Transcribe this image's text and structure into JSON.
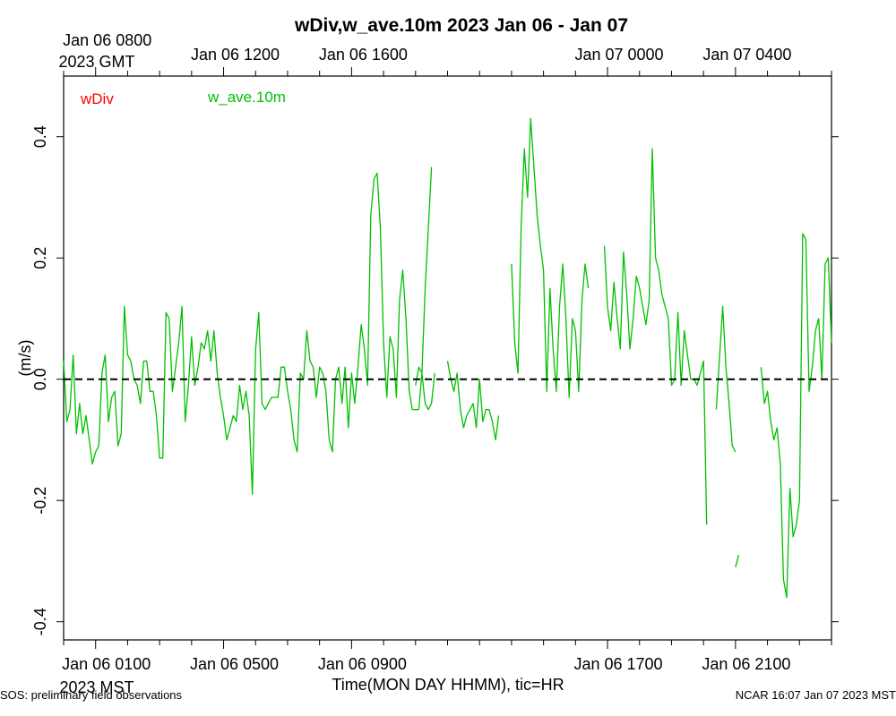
{
  "chart_data": {
    "type": "line",
    "title": "wDiv,w_ave.10m 2023 Jan 06 - Jan 07",
    "xlabel": "Time(MON DAY HHMM), tic=HR",
    "ylabel": "(m/s)",
    "ylim": [
      -0.43,
      0.5
    ],
    "xlim_hours": [
      0,
      24
    ],
    "yticks": [
      -0.4,
      -0.2,
      0.0,
      0.2,
      0.4
    ],
    "ytick_labels": [
      "-0.4",
      "-0.2",
      "0.0",
      "0.2",
      "0.4"
    ],
    "bottom_axis": {
      "tz_label": "2023 MST",
      "ticks": [
        {
          "hour": 1,
          "label": "Jan 06 0100"
        },
        {
          "hour": 5,
          "label": "Jan 06 0500"
        },
        {
          "hour": 9,
          "label": "Jan 06 0900"
        },
        {
          "hour": 17,
          "label": "Jan 06 1700"
        },
        {
          "hour": 21,
          "label": "Jan 06 2100"
        }
      ]
    },
    "top_axis": {
      "tz_label": "2023 GMT",
      "ticks": [
        {
          "hour": 1,
          "label": "Jan 06 0800"
        },
        {
          "hour": 5,
          "label": "Jan 06 1200"
        },
        {
          "hour": 9,
          "label": "Jan 06 1600"
        },
        {
          "hour": 17,
          "label": "Jan 07 0000"
        },
        {
          "hour": 21,
          "label": "Jan 07 0400"
        }
      ]
    },
    "zero_line": {
      "value": 0.0,
      "style": "dashed"
    },
    "series": [
      {
        "name": "wDiv",
        "color": "#ff0000",
        "points": []
      },
      {
        "name": "w_ave.10m",
        "color": "#00c000",
        "points": [
          [
            0.0,
            0.03
          ],
          [
            0.1,
            -0.07
          ],
          [
            0.2,
            -0.05
          ],
          [
            0.3,
            0.04
          ],
          [
            0.4,
            -0.09
          ],
          [
            0.5,
            -0.04
          ],
          [
            0.6,
            -0.09
          ],
          [
            0.7,
            -0.06
          ],
          [
            0.8,
            -0.1
          ],
          [
            0.9,
            -0.14
          ],
          [
            1.0,
            -0.12
          ],
          [
            1.1,
            -0.11
          ],
          [
            1.2,
            0.01
          ],
          [
            1.3,
            0.04
          ],
          [
            1.4,
            -0.07
          ],
          [
            1.5,
            -0.03
          ],
          [
            1.6,
            -0.02
          ],
          [
            1.7,
            -0.11
          ],
          [
            1.8,
            -0.09
          ],
          [
            1.9,
            0.12
          ],
          [
            2.0,
            0.04
          ],
          [
            2.1,
            0.03
          ],
          [
            2.2,
            0.0
          ],
          [
            2.3,
            -0.01
          ],
          [
            2.4,
            -0.04
          ],
          [
            2.5,
            0.03
          ],
          [
            2.6,
            0.03
          ],
          [
            2.7,
            -0.02
          ],
          [
            2.8,
            -0.02
          ],
          [
            2.9,
            -0.06
          ],
          [
            3.0,
            -0.13
          ],
          [
            3.1,
            -0.13
          ],
          [
            3.2,
            0.11
          ],
          [
            3.3,
            0.1
          ],
          [
            3.4,
            -0.02
          ],
          [
            3.5,
            0.02
          ],
          [
            3.6,
            0.06
          ],
          [
            3.7,
            0.12
          ],
          [
            3.8,
            -0.07
          ],
          [
            3.9,
            -0.01
          ],
          [
            4.0,
            0.07
          ],
          [
            4.1,
            -0.01
          ],
          [
            4.2,
            0.02
          ],
          [
            4.3,
            0.06
          ],
          [
            4.4,
            0.05
          ],
          [
            4.5,
            0.08
          ],
          [
            4.6,
            0.03
          ],
          [
            4.7,
            0.08
          ],
          [
            4.8,
            0.01
          ],
          [
            4.9,
            -0.03
          ],
          [
            5.0,
            -0.06
          ],
          [
            5.1,
            -0.1
          ],
          [
            5.2,
            -0.08
          ],
          [
            5.3,
            -0.06
          ],
          [
            5.4,
            -0.07
          ],
          [
            5.5,
            -0.01
          ],
          [
            5.6,
            -0.05
          ],
          [
            5.7,
            -0.02
          ],
          [
            5.8,
            -0.06
          ],
          [
            5.9,
            -0.19
          ],
          [
            6.0,
            0.05
          ],
          [
            6.1,
            0.11
          ],
          [
            6.2,
            -0.04
          ],
          [
            6.3,
            -0.05
          ],
          [
            6.4,
            -0.04
          ],
          [
            6.5,
            -0.03
          ],
          [
            6.6,
            -0.03
          ],
          [
            6.7,
            -0.03
          ],
          [
            6.8,
            0.02
          ],
          [
            6.9,
            0.02
          ],
          [
            7.0,
            -0.02
          ],
          [
            7.1,
            -0.05
          ],
          [
            7.2,
            -0.1
          ],
          [
            7.3,
            -0.12
          ],
          [
            7.4,
            0.01
          ],
          [
            7.5,
            0.0
          ],
          [
            7.6,
            0.08
          ],
          [
            7.7,
            0.03
          ],
          [
            7.8,
            0.02
          ],
          [
            7.9,
            -0.03
          ],
          [
            8.0,
            0.02
          ],
          [
            8.1,
            0.01
          ],
          [
            8.2,
            -0.02
          ],
          [
            8.3,
            -0.1
          ],
          [
            8.4,
            -0.12
          ],
          [
            8.5,
            0.0
          ],
          [
            8.6,
            0.02
          ],
          [
            8.7,
            -0.04
          ],
          [
            8.8,
            0.02
          ],
          [
            8.9,
            -0.08
          ],
          [
            9.0,
            0.01
          ],
          [
            9.1,
            -0.04
          ],
          [
            9.2,
            0.02
          ],
          [
            9.3,
            0.09
          ],
          [
            9.4,
            0.05
          ],
          [
            9.5,
            -0.01
          ],
          [
            9.6,
            0.27
          ],
          [
            9.7,
            0.33
          ],
          [
            9.8,
            0.34
          ],
          [
            9.9,
            0.25
          ],
          [
            10.0,
            0.06
          ],
          [
            10.1,
            -0.03
          ],
          [
            10.2,
            0.07
          ],
          [
            10.3,
            0.05
          ],
          [
            10.4,
            -0.03
          ],
          [
            10.5,
            0.13
          ],
          [
            10.6,
            0.18
          ],
          [
            10.7,
            0.1
          ],
          [
            10.8,
            -0.02
          ],
          [
            10.9,
            -0.05
          ],
          [
            11.0,
            -0.05
          ],
          [
            11.1,
            -0.05
          ],
          [
            11.2,
            0.01
          ],
          [
            11.3,
            0.15
          ],
          [
            11.4,
            0.25
          ],
          [
            11.5,
            0.35
          ]
        ]
      },
      {
        "name": "w_ave.10m",
        "color": "#00c000",
        "points": [
          [
            12.0,
            0.03
          ],
          [
            12.1,
            0.0
          ],
          [
            12.2,
            -0.02
          ],
          [
            12.3,
            0.01
          ],
          [
            12.4,
            -0.05
          ],
          [
            12.5,
            -0.08
          ],
          [
            12.6,
            -0.06
          ],
          [
            12.7,
            -0.05
          ],
          [
            12.8,
            -0.04
          ],
          [
            12.9,
            -0.08
          ],
          [
            13.0,
            0.0
          ],
          [
            13.1,
            -0.07
          ],
          [
            13.2,
            -0.05
          ],
          [
            13.3,
            -0.05
          ],
          [
            13.4,
            -0.07
          ],
          [
            13.5,
            -0.1
          ],
          [
            13.6,
            -0.06
          ]
        ]
      },
      {
        "name": "w_ave.10m",
        "color": "#00c000",
        "points": [
          [
            11.0,
            -0.01
          ],
          [
            11.1,
            0.02
          ],
          [
            11.2,
            0.01
          ],
          [
            11.3,
            -0.04
          ],
          [
            11.4,
            -0.05
          ],
          [
            11.5,
            -0.04
          ],
          [
            11.6,
            0.01
          ]
        ]
      },
      {
        "name": "w_ave.10m",
        "color": "#00c000",
        "points": [
          [
            14.0,
            0.19
          ],
          [
            14.1,
            0.06
          ],
          [
            14.2,
            0.01
          ],
          [
            14.3,
            0.25
          ],
          [
            14.4,
            0.38
          ],
          [
            14.5,
            0.3
          ],
          [
            14.6,
            0.43
          ],
          [
            14.7,
            0.35
          ],
          [
            14.8,
            0.27
          ],
          [
            14.9,
            0.22
          ],
          [
            15.0,
            0.18
          ],
          [
            15.1,
            -0.02
          ],
          [
            15.2,
            0.15
          ],
          [
            15.3,
            0.05
          ],
          [
            15.4,
            -0.02
          ],
          [
            15.5,
            0.12
          ],
          [
            15.6,
            0.19
          ],
          [
            15.7,
            0.1
          ],
          [
            15.8,
            -0.03
          ],
          [
            15.9,
            0.1
          ],
          [
            16.0,
            0.08
          ],
          [
            16.1,
            -0.02
          ],
          [
            16.2,
            0.13
          ],
          [
            16.3,
            0.19
          ],
          [
            16.4,
            0.15
          ]
        ]
      },
      {
        "name": "w_ave.10m",
        "color": "#00c000",
        "points": [
          [
            16.9,
            0.22
          ],
          [
            17.0,
            0.12
          ],
          [
            17.1,
            0.08
          ],
          [
            17.2,
            0.16
          ],
          [
            17.3,
            0.1
          ],
          [
            17.4,
            0.05
          ],
          [
            17.5,
            0.21
          ],
          [
            17.6,
            0.14
          ],
          [
            17.7,
            0.05
          ],
          [
            17.8,
            0.1
          ],
          [
            17.9,
            0.17
          ],
          [
            18.0,
            0.15
          ],
          [
            18.1,
            0.12
          ],
          [
            18.2,
            0.09
          ],
          [
            18.3,
            0.13
          ],
          [
            18.4,
            0.38
          ],
          [
            18.5,
            0.2
          ],
          [
            18.6,
            0.18
          ],
          [
            18.7,
            0.14
          ],
          [
            18.8,
            0.12
          ],
          [
            18.9,
            0.1
          ],
          [
            19.0,
            -0.01
          ],
          [
            19.1,
            0.0
          ],
          [
            19.2,
            0.11
          ],
          [
            19.3,
            -0.01
          ],
          [
            19.4,
            0.08
          ],
          [
            19.5,
            0.04
          ],
          [
            19.6,
            0.0
          ],
          [
            19.7,
            0.0
          ],
          [
            19.8,
            -0.01
          ],
          [
            19.9,
            0.01
          ],
          [
            20.0,
            0.03
          ],
          [
            20.1,
            -0.24
          ]
        ]
      },
      {
        "name": "w_ave.10m",
        "color": "#00c000",
        "points": [
          [
            20.4,
            -0.05
          ],
          [
            20.6,
            0.12
          ],
          [
            20.7,
            0.02
          ],
          [
            20.8,
            -0.04
          ],
          [
            20.9,
            -0.11
          ],
          [
            21.0,
            -0.12
          ]
        ]
      },
      {
        "name": "w_ave.10m",
        "color": "#00c000",
        "points": [
          [
            21.0,
            -0.31
          ],
          [
            21.1,
            -0.29
          ]
        ]
      },
      {
        "name": "w_ave.10m",
        "color": "#00c000",
        "points": [
          [
            21.8,
            0.02
          ],
          [
            21.9,
            -0.04
          ],
          [
            22.0,
            -0.02
          ],
          [
            22.1,
            -0.07
          ],
          [
            22.2,
            -0.1
          ],
          [
            22.3,
            -0.08
          ],
          [
            22.4,
            -0.14
          ],
          [
            22.5,
            -0.33
          ],
          [
            22.6,
            -0.36
          ],
          [
            22.7,
            -0.18
          ],
          [
            22.8,
            -0.26
          ],
          [
            22.9,
            -0.24
          ],
          [
            23.0,
            -0.2
          ],
          [
            23.1,
            0.24
          ],
          [
            23.2,
            0.23
          ],
          [
            23.3,
            -0.02
          ],
          [
            23.4,
            0.02
          ],
          [
            23.5,
            0.08
          ],
          [
            23.6,
            0.1
          ],
          [
            23.7,
            0.0
          ],
          [
            23.8,
            0.19
          ],
          [
            23.9,
            0.2
          ],
          [
            24.0,
            0.06
          ]
        ]
      }
    ]
  },
  "footer": {
    "left": "SOS: preliminary field observations",
    "right": "NCAR 16:07 Jan 07 2023 MST"
  }
}
